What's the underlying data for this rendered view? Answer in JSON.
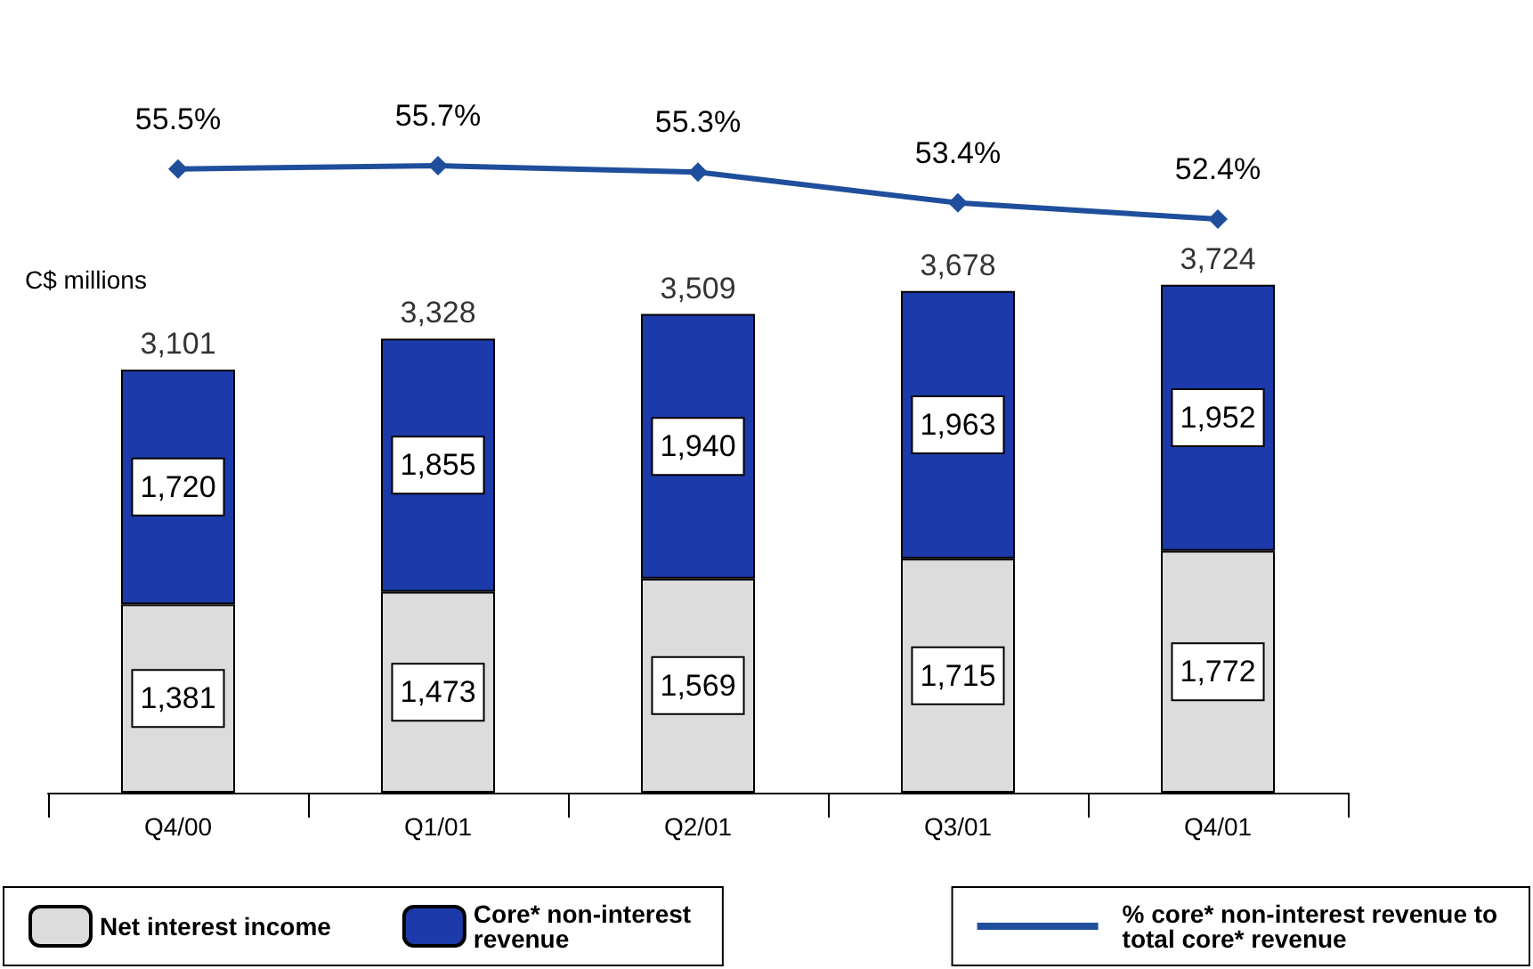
{
  "chart_data": [
    {
      "type": "line",
      "categories": [
        null,
        null,
        null,
        null,
        null
      ],
      "tick_labels": false,
      "grid": false,
      "marker": "diamond",
      "line_style": "solid",
      "legend": "bottom right",
      "series": [
        {
          "name": "% core* non-interest revenue to total core* revenue",
          "color": "#1f4e9c",
          "values": [
            55.5,
            55.7,
            55.3,
            53.4,
            52.4
          ],
          "value_labels": [
            "55.5%",
            "55.7%",
            "55.3%",
            "53.4%",
            "52.4%"
          ]
        }
      ]
    },
    {
      "type": "bar",
      "stacked": true,
      "ylabel": "C$ millions",
      "categories": [
        "Q4/00",
        "Q1/01",
        "Q2/01",
        "Q3/01",
        "Q4/01"
      ],
      "series": [
        {
          "name": "Net interest income",
          "color": "#dcdcdc",
          "values": [
            1381,
            1473,
            1569,
            1715,
            1772
          ],
          "value_labels": [
            "1,381",
            "1,473",
            "1,569",
            "1,715",
            "1,772"
          ]
        },
        {
          "name": "Core* non-interest revenue",
          "color": "#1c3aa9",
          "values": [
            1720,
            1855,
            1940,
            1963,
            1952
          ],
          "value_labels": [
            "1,720",
            "1,855",
            "1,940",
            "1,963",
            "1,952"
          ]
        }
      ],
      "totals": [
        "3,101",
        "3,328",
        "3,509",
        "3,678",
        "3,724"
      ],
      "tick_labels": "x",
      "grid": false,
      "legend": "bottom left"
    }
  ]
}
